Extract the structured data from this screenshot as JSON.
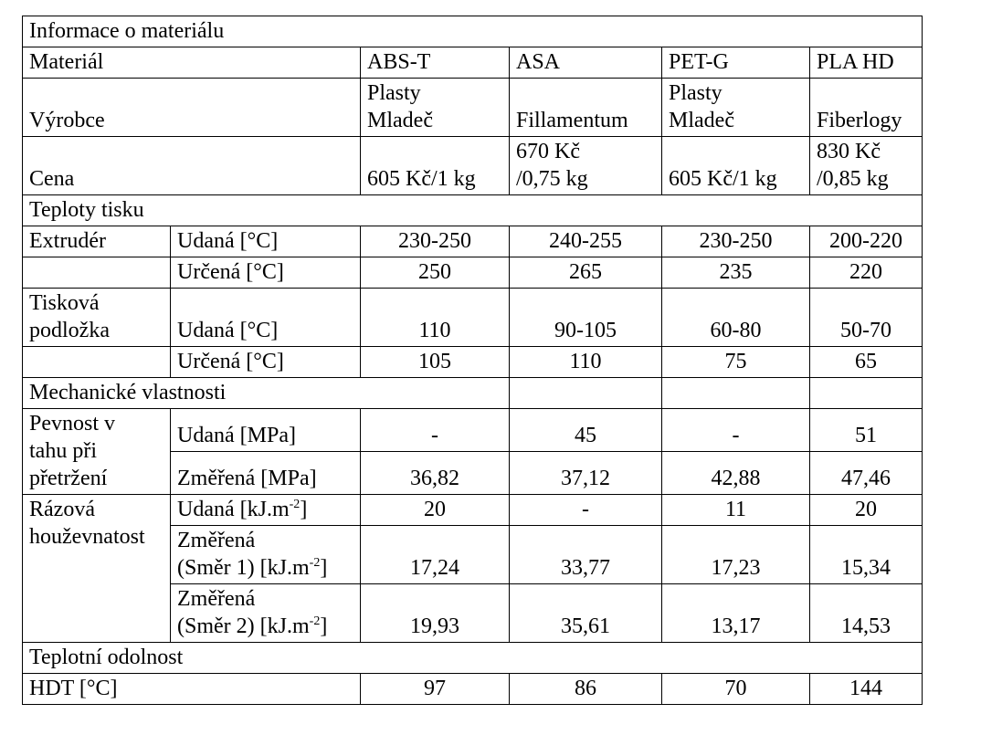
{
  "title": "Informace o materiálu",
  "header": {
    "label": "Materiál",
    "materials": [
      "ABS-T",
      "ASA",
      "PET-G",
      "PLA HD"
    ]
  },
  "manufacturer": {
    "label": "Výrobce",
    "values": [
      "Plasty\nMladeč",
      "Fillamentum",
      "Plasty\nMladeč",
      "Fiberlogy"
    ]
  },
  "price": {
    "label": "Cena",
    "values": [
      "605 Kč/1 kg",
      "670 Kč\n/0,75 kg",
      "605 Kč/1 kg",
      "830 Kč\n/0,85 kg"
    ]
  },
  "print_temps": {
    "title": "Teploty tisku",
    "groups": [
      {
        "label": "Extrudér",
        "rows": [
          {
            "label": "Udaná [°C]",
            "values": [
              "230-250",
              "240-255",
              "230-250",
              "200-220"
            ]
          },
          {
            "label": "Určená [°C]",
            "values": [
              "250",
              "265",
              "235",
              "220"
            ]
          }
        ]
      },
      {
        "label": "Tisková\npodložka",
        "rows": [
          {
            "label": "Udaná [°C]",
            "values": [
              "110",
              "90-105",
              "60-80",
              "50-70"
            ]
          },
          {
            "label": "Určená [°C]",
            "values": [
              "105",
              "110",
              "75",
              "65"
            ]
          }
        ]
      }
    ]
  },
  "mechanical": {
    "title": "Mechanické vlastnosti",
    "groups": [
      {
        "label": "Pevnost v\ntahu při\npřetržení",
        "rows": [
          {
            "label": "Udaná [MPa]",
            "values": [
              "-",
              "45",
              "-",
              "51"
            ]
          },
          {
            "label": "Změřená [MPa]",
            "values": [
              "36,82",
              "37,12",
              "42,88",
              "47,46"
            ]
          }
        ]
      },
      {
        "label": "Rázová\nhouževnatost",
        "rows": [
          {
            "label": {
              "text": "Udaná [kJ.m",
              "sup": "-2",
              "end": "]"
            },
            "values": [
              "20",
              "-",
              "11",
              "20"
            ]
          },
          {
            "label": {
              "text": "Změřená\n(Směr 1) [kJ.m",
              "sup": "-2",
              "end": "]"
            },
            "values": [
              "17,24",
              "33,77",
              "17,23",
              "15,34"
            ]
          },
          {
            "label": {
              "text": "Změřená\n(Směr 2) [kJ.m",
              "sup": "-2",
              "end": "]"
            },
            "values": [
              "19,93",
              "35,61",
              "13,17",
              "14,53"
            ]
          }
        ]
      }
    ]
  },
  "thermal": {
    "title": "Teplotní odolnost",
    "rows": [
      {
        "label": "HDT [°C]",
        "values": [
          "97",
          "86",
          "70",
          "144"
        ]
      }
    ]
  }
}
